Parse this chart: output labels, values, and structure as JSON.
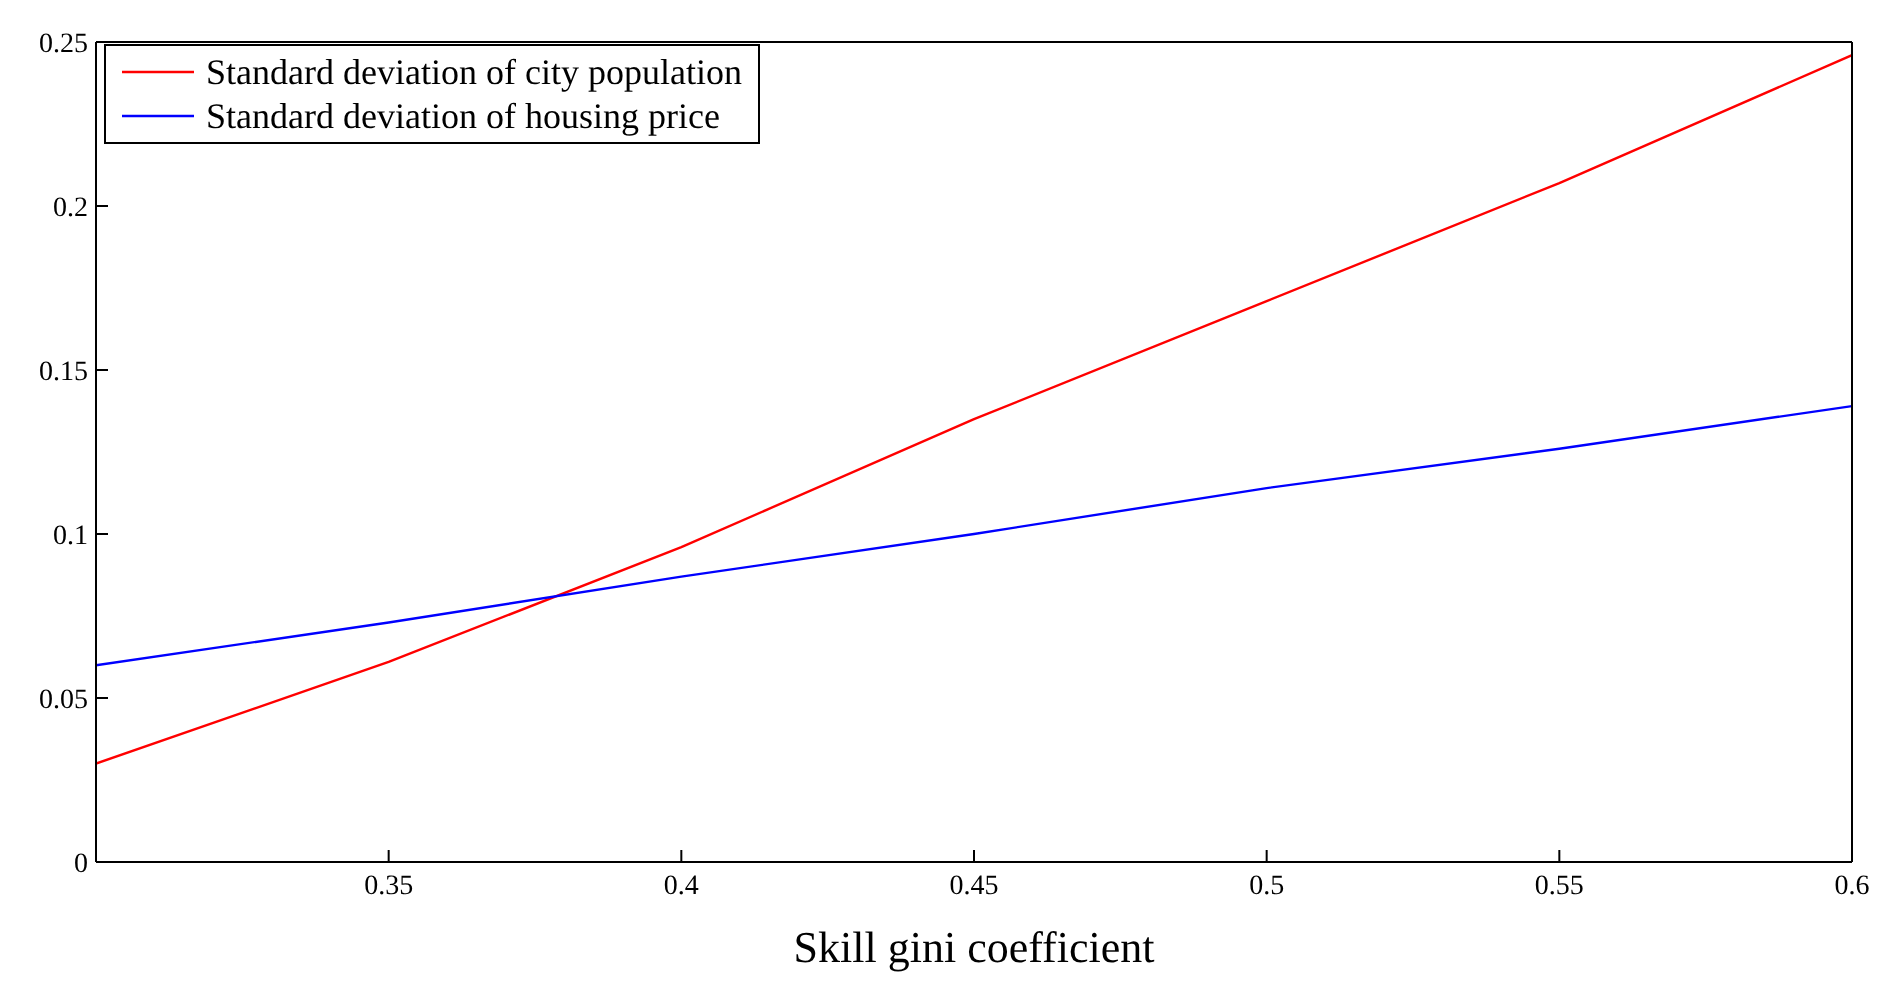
{
  "chart_data": {
    "type": "line",
    "xlabel": "Skill gini coefficient",
    "x": [
      0.3,
      0.35,
      0.4,
      0.45,
      0.5,
      0.55,
      0.6
    ],
    "series": [
      {
        "name": "Standard deviation of city population",
        "color": "#ff0000",
        "values": [
          0.03,
          0.061,
          0.096,
          0.135,
          0.171,
          0.207,
          0.246
        ]
      },
      {
        "name": "Standard deviation of housing price",
        "color": "#0000ff",
        "values": [
          0.06,
          0.073,
          0.087,
          0.1,
          0.114,
          0.126,
          0.139
        ]
      }
    ],
    "xlim": [
      0.3,
      0.6
    ],
    "xticks": [
      0.35,
      0.4,
      0.45,
      0.5,
      0.55,
      0.6
    ],
    "ylim": [
      0,
      0.25
    ],
    "yticks": [
      0,
      0.05,
      0.1,
      0.15,
      0.2,
      0.25
    ],
    "grid": false,
    "legend": "top left",
    "marker": "none",
    "line_style": "solid"
  }
}
